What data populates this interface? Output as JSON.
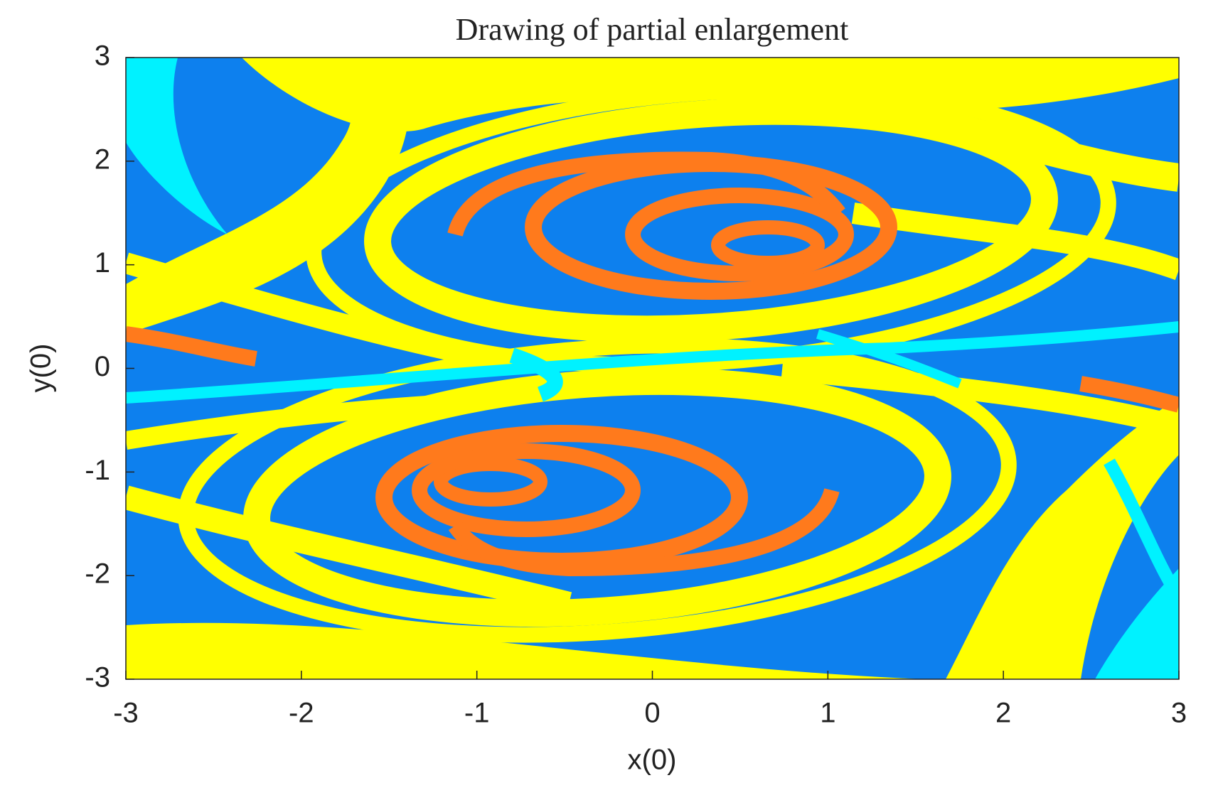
{
  "chart_data": {
    "type": "image",
    "title": "Drawing of partial enlargement",
    "x_label": "x(0)",
    "y_label": "y(0)",
    "xlim": [
      -3,
      3
    ],
    "ylim": [
      -3,
      3
    ],
    "xticks": [
      -3,
      -2,
      -1,
      0,
      1,
      2,
      3
    ],
    "yticks": [
      -3,
      -2,
      -1,
      0,
      1,
      2,
      3
    ],
    "colors": [
      "#0d80ee",
      "#ffff00",
      "#00f2ff",
      "#ff7a1c"
    ]
  }
}
